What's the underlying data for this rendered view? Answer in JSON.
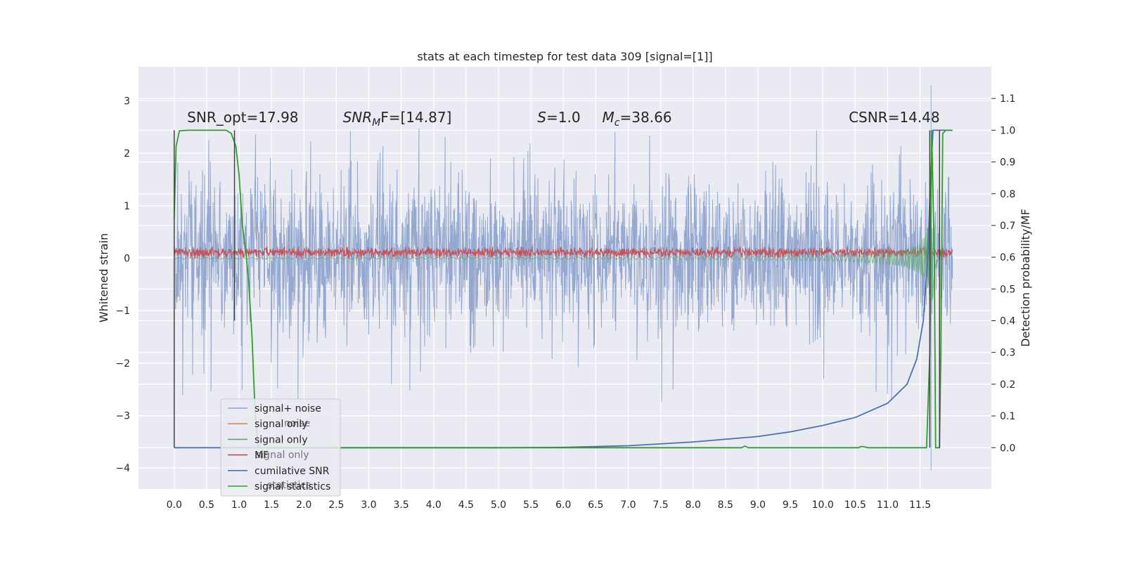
{
  "chart_data": {
    "type": "line",
    "title": "stats at each timestep for test data 309 [signal=[1]]",
    "ylabel": "Whitened strain",
    "y2label": "Detection probability/MF",
    "xlim": [
      -0.55,
      12.6
    ],
    "ylim": [
      -4.4,
      3.65
    ],
    "y2lim": [
      -0.13,
      1.2
    ],
    "grid": true,
    "x_ticks": [
      "0.0",
      "0.5",
      "1.0",
      "1.5",
      "2.0",
      "2.5",
      "3.0",
      "3.5",
      "4.0",
      "4.5",
      "5.0",
      "5.5",
      "6.0",
      "6.5",
      "7.0",
      "7.5",
      "8.0",
      "8.5",
      "9.0",
      "9.5",
      "10.0",
      "10.5",
      "11.0",
      "11.5"
    ],
    "y_ticks": [
      "3",
      "2",
      "1",
      "0",
      "−1",
      "−2",
      "−3",
      "−4"
    ],
    "y2_ticks": [
      "1.1",
      "1.0",
      "0.9",
      "0.8",
      "0.7",
      "0.6",
      "0.5",
      "0.4",
      "0.3",
      "0.2",
      "0.1",
      "0.0"
    ],
    "annotations": {
      "snr_opt": "SNR_opt=17.98",
      "snr_mf_base": "SNR",
      "snr_mf_sub": "M",
      "snr_mf_rest": "F=[14.87]",
      "s_sym": "S",
      "s_rest": "=1.0",
      "mc_sym": "M",
      "mc_sub": "c",
      "mc_rest": "=38.66",
      "csnr": "CSNR=14.48"
    },
    "legend_position": "lower-left",
    "legend": [
      {
        "label": "signal+ noise",
        "color": "#8fa4cd"
      },
      {
        "label": "signal only",
        "color": "#dd8452"
      },
      {
        "label": "signal only",
        "color": "#55a868"
      },
      {
        "label": "MF",
        "color": "#c44e52"
      },
      {
        "label": "cumilative SNR",
        "color": "#4c72b0"
      },
      {
        "label": "signal statistics",
        "color": "#2ca02c"
      }
    ],
    "legend_ghost_labels": [
      "noise",
      "signal only",
      "statistics"
    ],
    "series": [
      {
        "name": "signal+ noise",
        "axis": "left",
        "style": "noise-band",
        "color": "#8fa4cd",
        "x_range": [
          0.0,
          12.0
        ],
        "typical_range": [
          -1.5,
          1.6
        ],
        "extreme_range": [
          -4.05,
          3.3
        ]
      },
      {
        "name": "MF",
        "axis": "left",
        "style": "noise-band",
        "color": "#c44e52",
        "x_range": [
          0.0,
          12.0
        ],
        "typical_range": [
          0.0,
          0.22
        ]
      },
      {
        "name": "signal only",
        "axis": "left",
        "style": "chirp",
        "color": "#55a868",
        "x_range": [
          0.0,
          11.85
        ],
        "peak_time": 11.7,
        "peak_amplitude": 3.0
      },
      {
        "name": "cumilative SNR",
        "axis": "right",
        "color": "#4c72b0",
        "points": [
          [
            0.0,
            0.0
          ],
          [
            1.0,
            0.0
          ],
          [
            5.0,
            0.0
          ],
          [
            6.0,
            0.001
          ],
          [
            7.0,
            0.006
          ],
          [
            8.0,
            0.018
          ],
          [
            9.0,
            0.035
          ],
          [
            9.5,
            0.05
          ],
          [
            10.0,
            0.07
          ],
          [
            10.5,
            0.095
          ],
          [
            11.0,
            0.14
          ],
          [
            11.3,
            0.2
          ],
          [
            11.45,
            0.28
          ],
          [
            11.55,
            0.4
          ],
          [
            11.62,
            0.6
          ],
          [
            11.66,
            0.85
          ],
          [
            11.7,
            1.0
          ],
          [
            12.0,
            1.0
          ]
        ]
      },
      {
        "name": "signal statistics",
        "axis": "right",
        "color": "#2ca02c",
        "points": [
          [
            0.0,
            0.72
          ],
          [
            0.03,
            0.95
          ],
          [
            0.08,
            0.998
          ],
          [
            0.2,
            1.0
          ],
          [
            0.8,
            1.0
          ],
          [
            0.88,
            0.99
          ],
          [
            0.95,
            0.95
          ],
          [
            1.0,
            0.86
          ],
          [
            1.05,
            0.7
          ],
          [
            1.1,
            0.63
          ],
          [
            1.15,
            0.52
          ],
          [
            1.2,
            0.35
          ],
          [
            1.25,
            0.1
          ],
          [
            1.3,
            0.0
          ],
          [
            8.75,
            0.0
          ],
          [
            8.8,
            0.005
          ],
          [
            8.85,
            0.0
          ],
          [
            10.55,
            0.0
          ],
          [
            10.6,
            0.004
          ],
          [
            10.7,
            0.0
          ],
          [
            11.6,
            0.0
          ],
          [
            11.65,
            0.3
          ],
          [
            11.68,
            1.0
          ],
          [
            11.72,
            0.6
          ],
          [
            11.74,
            0.0
          ],
          [
            11.8,
            0.0
          ],
          [
            11.82,
            0.3
          ],
          [
            11.85,
            0.99
          ],
          [
            11.9,
            1.0
          ],
          [
            12.0,
            1.0
          ]
        ]
      },
      {
        "name": "window markers",
        "axis": "right",
        "color": "#444444",
        "segments": [
          [
            [
              0.0,
              0.0
            ],
            [
              0.0,
              1.0
            ]
          ],
          [
            [
              0.93,
              1.0
            ],
            [
              0.93,
              0.4
            ]
          ],
          [
            [
              11.65,
              1.0
            ],
            [
              11.65,
              0.0
            ]
          ],
          [
            [
              11.8,
              1.0
            ],
            [
              11.8,
              0.0
            ]
          ]
        ]
      }
    ]
  }
}
